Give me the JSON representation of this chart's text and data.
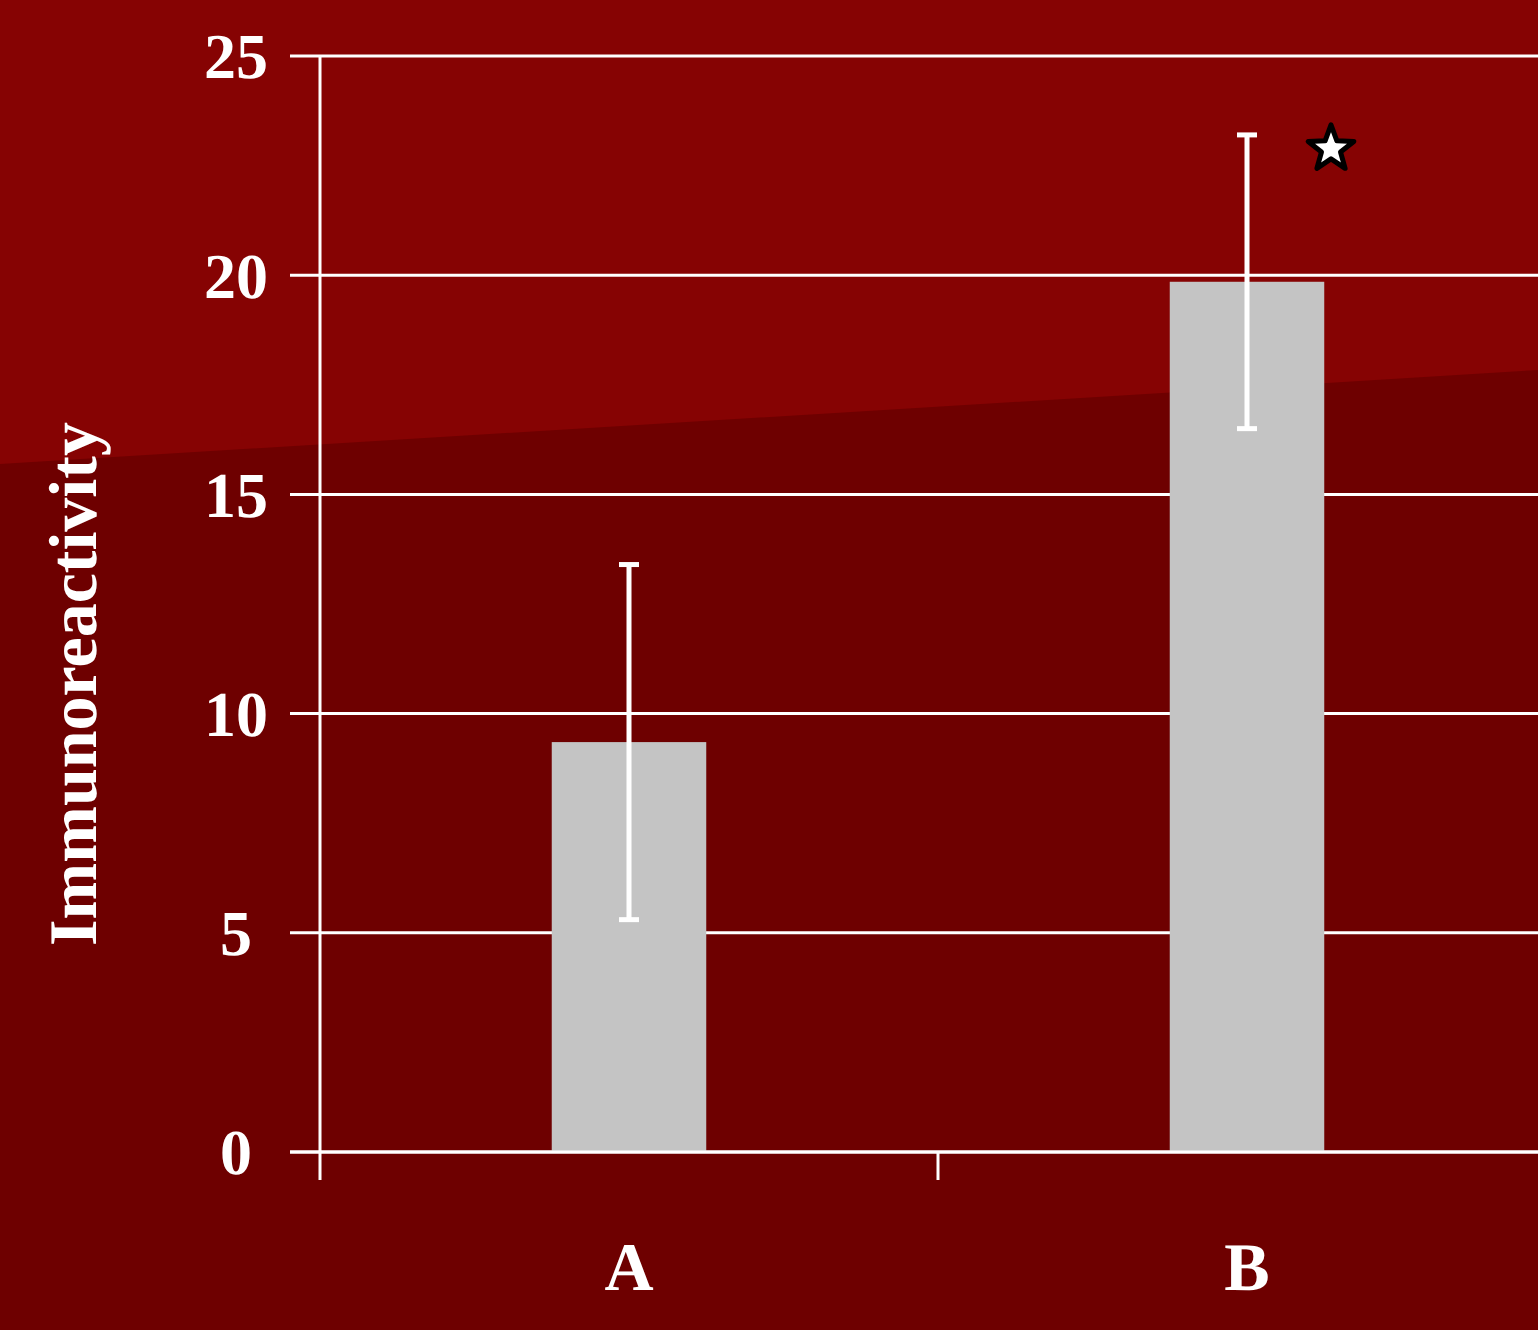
{
  "chart_data": {
    "type": "bar",
    "ylabel": "Immunoreactivity",
    "categories": [
      "A",
      "B"
    ],
    "values": [
      9.35,
      19.85
    ],
    "errors": [
      4.05,
      3.35
    ],
    "color": "#c4c4c4",
    "ylim": [
      0,
      25
    ],
    "yticks": [
      0,
      5,
      10,
      15,
      20,
      25
    ],
    "grid": "y"
  }
}
